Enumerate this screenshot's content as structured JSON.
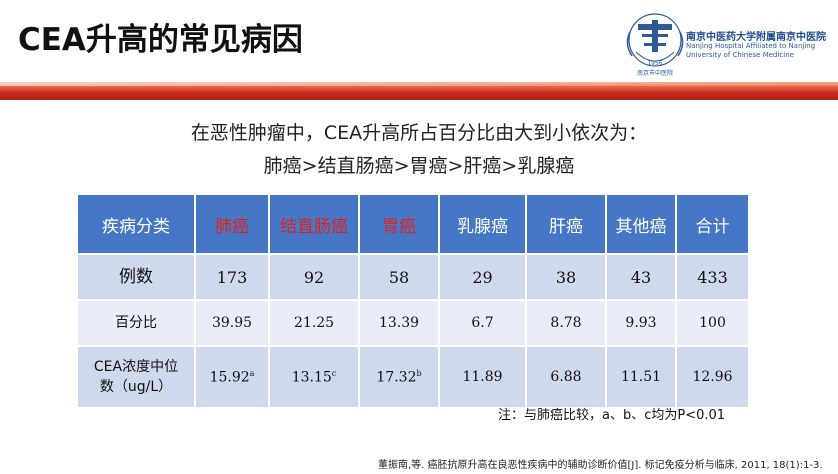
{
  "title": "CEA升高的常见病因",
  "logo": {
    "line1": "南京中医药大学附属南京中医院",
    "line2a": "Nanjing Hospital Affiliated to Nanjing",
    "line2b": "University of Chinese Medicine",
    "year": "1956",
    "seal_text": "南京市中医院"
  },
  "intro": {
    "line1": "在恶性肿瘤中，CEA升高所占百分比由大到小依次为：",
    "line2": "肺癌>结直肠癌>胃癌>肝癌>乳腺癌"
  },
  "table": {
    "headers": [
      "疾病分类",
      "肺癌",
      "结直肠癌",
      "胃癌",
      "乳腺癌",
      "肝癌",
      "其他癌",
      "合计"
    ],
    "rows": [
      {
        "label": "例数",
        "values": [
          "173",
          "92",
          "58",
          "29",
          "38",
          "43",
          "433"
        ]
      },
      {
        "label": "百分比",
        "values": [
          "39.95",
          "21.25",
          "13.39",
          "6.7",
          "8.78",
          "9.93",
          "100"
        ]
      },
      {
        "label1": "CEA浓度中位",
        "label2": "数（ug/L）",
        "values": [
          "15.92",
          "13.15",
          "17.32",
          "11.89",
          "6.88",
          "11.51",
          "12.96"
        ],
        "sups": [
          "a",
          "c",
          "b"
        ]
      }
    ]
  },
  "note": "注：与肺癌比较，a、b、c均为P<0.01",
  "citation": "董振南,等. 癌胚抗原升高在良恶性疾病中的辅助诊断价值[J]. 标记免疫分析与临床, 2011, 18(1):1-3.",
  "colors": {
    "header_bg": "#4677c7",
    "highlight_text": "#e0211b",
    "row_dark": "#cfd9ee",
    "row_light": "#e8edf7",
    "banner": "#c52a1c"
  }
}
